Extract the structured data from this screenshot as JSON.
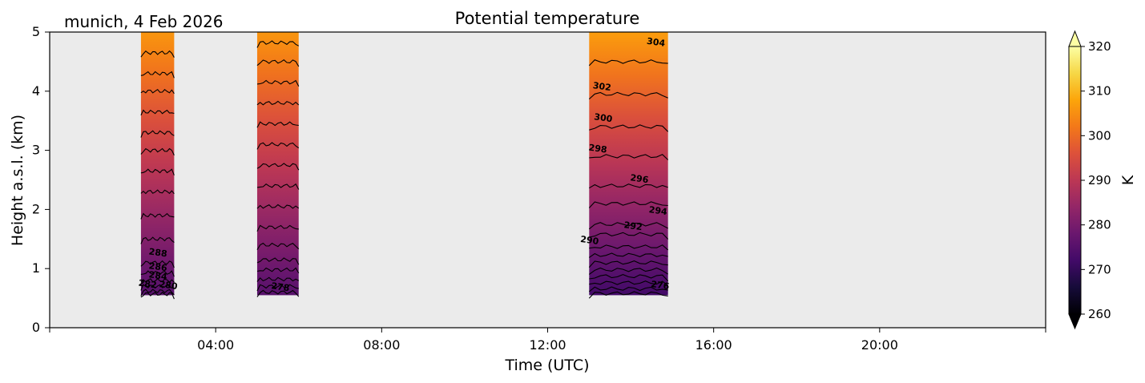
{
  "chart_data": {
    "type": "heatmap",
    "title": "Potential temperature",
    "location_label": "munich, 4 Feb 2026",
    "xlabel": "Time (UTC)",
    "ylabel": "Height a.s.l. (km)",
    "xlim_hours": [
      0,
      24
    ],
    "ylim_km": [
      0,
      5
    ],
    "x_ticks": [
      {
        "hour": 4,
        "label": "04:00"
      },
      {
        "hour": 8,
        "label": "08:00"
      },
      {
        "hour": 12,
        "label": "12:00"
      },
      {
        "hour": 16,
        "label": "16:00"
      },
      {
        "hour": 20,
        "label": "20:00"
      }
    ],
    "y_ticks": [
      {
        "km": 0,
        "label": "0"
      },
      {
        "km": 1,
        "label": "1"
      },
      {
        "km": 2,
        "label": "2"
      },
      {
        "km": 3,
        "label": "3"
      },
      {
        "km": 4,
        "label": "4"
      },
      {
        "km": 5,
        "label": "5"
      }
    ],
    "background_color": "#ebebeb",
    "colormap": "inferno",
    "colorbar": {
      "label": "K",
      "vmin": 260,
      "vmax": 320,
      "extend": "both",
      "ticks": [
        {
          "value": 260,
          "label": "260"
        },
        {
          "value": 270,
          "label": "270"
        },
        {
          "value": 280,
          "label": "280"
        },
        {
          "value": 290,
          "label": "290"
        },
        {
          "value": 300,
          "label": "300"
        },
        {
          "value": 310,
          "label": "310"
        },
        {
          "value": 320,
          "label": "320"
        }
      ]
    },
    "segments": [
      {
        "start_hour": 2.2,
        "end_hour": 3.0,
        "base_km": 0.55,
        "top_km": 5.0,
        "theta_bottom": 275,
        "theta_top": 306,
        "contours": [
          {
            "level": 276,
            "km": 0.57
          },
          {
            "level": 278,
            "km": 0.62
          },
          {
            "level": 280,
            "km": 0.7
          },
          {
            "level": 282,
            "km": 0.8
          },
          {
            "level": 284,
            "km": 0.93
          },
          {
            "level": 286,
            "km": 1.1
          },
          {
            "level": 288,
            "km": 1.5
          },
          {
            "level": 290,
            "km": 1.9
          },
          {
            "level": 292,
            "km": 2.3
          },
          {
            "level": 294,
            "km": 2.65
          },
          {
            "level": 296,
            "km": 3.0
          },
          {
            "level": 298,
            "km": 3.3
          },
          {
            "level": 300,
            "km": 3.65
          },
          {
            "level": 302,
            "km": 4.0
          },
          {
            "level": 304,
            "km": 4.3
          },
          {
            "level": 306,
            "km": 4.65
          }
        ],
        "contour_labels": [
          {
            "text": "288",
            "hour": 2.6,
            "km": 1.22
          },
          {
            "text": "286",
            "hour": 2.6,
            "km": 0.98
          },
          {
            "text": "284",
            "hour": 2.6,
            "km": 0.83
          },
          {
            "text": "282",
            "hour": 2.35,
            "km": 0.69
          },
          {
            "text": "280",
            "hour": 2.85,
            "km": 0.67
          }
        ]
      },
      {
        "start_hour": 5.0,
        "end_hour": 6.0,
        "base_km": 0.55,
        "top_km": 5.0,
        "theta_bottom": 275,
        "theta_top": 306,
        "contours": [
          {
            "level": 276,
            "km": 0.6
          },
          {
            "level": 278,
            "km": 0.7
          },
          {
            "level": 280,
            "km": 0.82
          },
          {
            "level": 282,
            "km": 0.98
          },
          {
            "level": 284,
            "km": 1.15
          },
          {
            "level": 286,
            "km": 1.4
          },
          {
            "level": 288,
            "km": 1.7
          },
          {
            "level": 290,
            "km": 2.05
          },
          {
            "level": 292,
            "km": 2.4
          },
          {
            "level": 294,
            "km": 2.75
          },
          {
            "level": 296,
            "km": 3.1
          },
          {
            "level": 298,
            "km": 3.45
          },
          {
            "level": 300,
            "km": 3.8
          },
          {
            "level": 302,
            "km": 4.15
          },
          {
            "level": 304,
            "km": 4.5
          },
          {
            "level": 306,
            "km": 4.82
          }
        ],
        "contour_labels": [
          {
            "text": "278",
            "hour": 5.55,
            "km": 0.64
          }
        ]
      },
      {
        "start_hour": 13.0,
        "end_hour": 14.9,
        "base_km": 0.55,
        "top_km": 5.0,
        "theta_bottom": 272,
        "theta_top": 307,
        "contours": [
          {
            "level": 274,
            "km": 0.58
          },
          {
            "level": 276,
            "km": 0.66
          },
          {
            "level": 278,
            "km": 0.76
          },
          {
            "level": 280,
            "km": 0.87
          },
          {
            "level": 282,
            "km": 0.98
          },
          {
            "level": 284,
            "km": 1.1
          },
          {
            "level": 286,
            "km": 1.23
          },
          {
            "level": 288,
            "km": 1.37
          },
          {
            "level": 290,
            "km": 1.58
          },
          {
            "level": 292,
            "km": 1.75
          },
          {
            "level": 294,
            "km": 2.1
          },
          {
            "level": 296,
            "km": 2.4
          },
          {
            "level": 298,
            "km": 2.9
          },
          {
            "level": 300,
            "km": 3.4
          },
          {
            "level": 302,
            "km": 3.95
          },
          {
            "level": 304,
            "km": 4.5
          }
        ],
        "contour_labels": [
          {
            "text": "304",
            "hour": 14.6,
            "km": 4.78
          },
          {
            "text": "302",
            "hour": 13.3,
            "km": 4.03
          },
          {
            "text": "300",
            "hour": 13.33,
            "km": 3.5
          },
          {
            "text": "298",
            "hour": 13.2,
            "km": 2.98
          },
          {
            "text": "296",
            "hour": 14.2,
            "km": 2.47
          },
          {
            "text": "294",
            "hour": 14.65,
            "km": 1.93
          },
          {
            "text": "292",
            "hour": 14.05,
            "km": 1.67
          },
          {
            "text": "290",
            "hour": 13.0,
            "km": 1.43
          },
          {
            "text": "276",
            "hour": 14.7,
            "km": 0.67
          }
        ]
      }
    ]
  }
}
